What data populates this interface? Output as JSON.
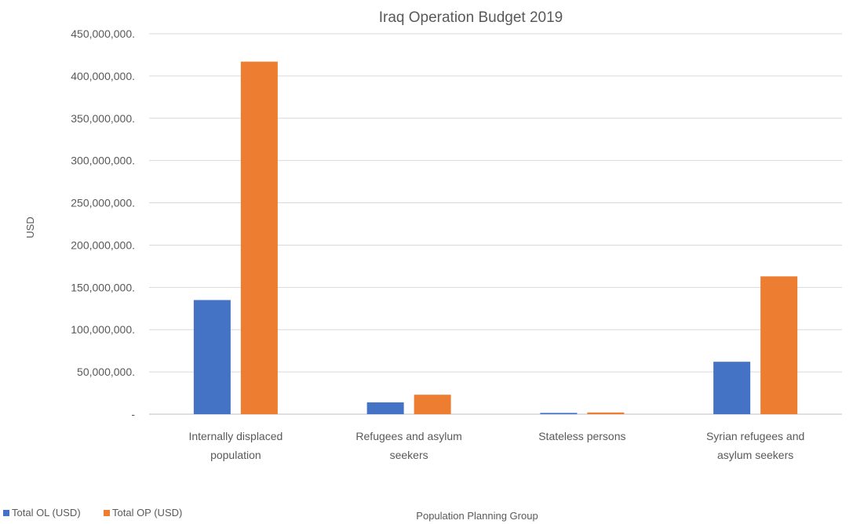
{
  "chart_data": {
    "type": "bar",
    "title": "Iraq Operation Budget 2019",
    "xlabel": "Population Planning Group",
    "ylabel": "USD",
    "categories": [
      [
        "Internally displaced",
        "population"
      ],
      [
        "Refugees and asylum",
        "seekers"
      ],
      [
        "Stateless persons"
      ],
      [
        "Syrian refugees and",
        "asylum seekers"
      ]
    ],
    "series": [
      {
        "name": "Total OL (USD)",
        "color": "#4472C4",
        "values": [
          135000000,
          14000000,
          1500000,
          62000000
        ]
      },
      {
        "name": "Total OP (USD)",
        "color": "#ED7D31",
        "values": [
          417000000,
          23000000,
          2000000,
          163000000
        ]
      }
    ],
    "ylim": [
      0,
      450000000
    ],
    "yticks": [
      {
        "value": 0,
        "label": "-"
      },
      {
        "value": 50000000,
        "label": "50,000,000."
      },
      {
        "value": 100000000,
        "label": "100,000,000."
      },
      {
        "value": 150000000,
        "label": "150,000,000."
      },
      {
        "value": 200000000,
        "label": "200,000,000."
      },
      {
        "value": 250000000,
        "label": "250,000,000."
      },
      {
        "value": 300000000,
        "label": "300,000,000."
      },
      {
        "value": 350000000,
        "label": "350,000,000."
      },
      {
        "value": 400000000,
        "label": "400,000,000."
      },
      {
        "value": 450000000,
        "label": "450,000,000."
      }
    ],
    "grid": true,
    "legend_position": "bottom-left"
  }
}
